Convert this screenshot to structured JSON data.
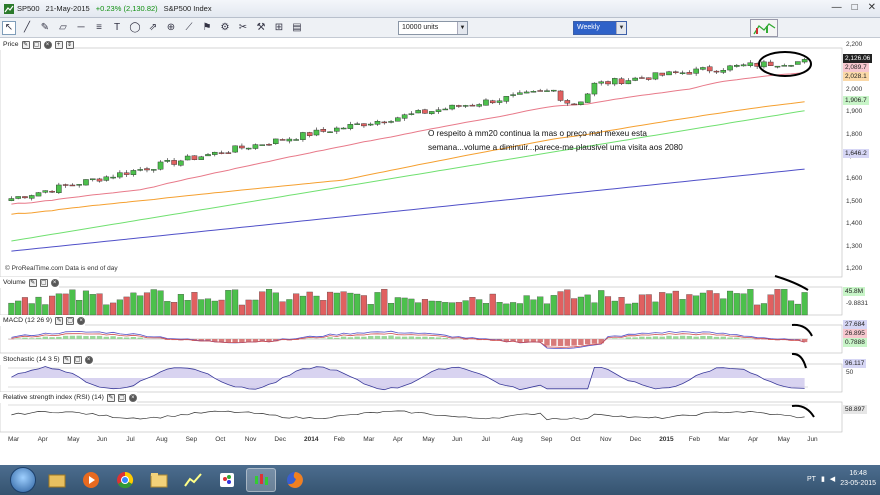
{
  "titlebar": {
    "symbol": "SP500",
    "date": "21-May-2015",
    "change": "+0.23% (2,130.82)",
    "name": "S&P500 Index",
    "controls": [
      "—",
      "□",
      "✕"
    ]
  },
  "toolbar": {
    "units": "10000 units",
    "period": "Weekly"
  },
  "panels": {
    "price": "Price",
    "volume": "Volume",
    "macd": "MACD (12 26 9)",
    "stochastic": "Stochastic (14 3 5)",
    "rsi": "Relative strength index (RSI) (14)"
  },
  "copyright": "© ProRealTime.com  Data is end of day",
  "annotation": {
    "line1": "O respeito à mm20 continua la mas o preço mal mexeu esta",
    "line2": "semana...volume a diminuir...parece-me plausivel uma visita aos 2080"
  },
  "price_axis": [
    "2,200",
    "2,100",
    "2,000",
    "1,900",
    "1,800",
    "1,700",
    "1,600",
    "1,500",
    "1,400",
    "1,300",
    "1,200"
  ],
  "price_tags": {
    "last": "2,126.06",
    "ma_a": "2,089.7",
    "ma_b": "2,028.1",
    "ma_c": "1,906.7",
    "ma_d": "1,646.2"
  },
  "volume_tags": {
    "v1": "45.8M",
    "v2": "-9.8831"
  },
  "macd_tags": {
    "m1": "27.684",
    "m2": "26.895",
    "m3": "0.7888"
  },
  "stoch_tags": {
    "s1": "96.117",
    "s2": "50"
  },
  "rsi_tags": {
    "r1": "58.897"
  },
  "x_axis": [
    "Mar",
    "Apr",
    "May",
    "Jun",
    "Jul",
    "Aug",
    "Sep",
    "Oct",
    "Nov",
    "Dec",
    "2014",
    "Feb",
    "Mar",
    "Apr",
    "May",
    "Jun",
    "Jul",
    "Aug",
    "Sep",
    "Oct",
    "Nov",
    "Dec",
    "2015",
    "Feb",
    "Mar",
    "Apr",
    "May",
    "Jun"
  ],
  "taskbar": {
    "lang": "PT",
    "time": "16:48",
    "date": "23-05-2015"
  },
  "colors": {
    "up": "#4cc04c",
    "down": "#e06060",
    "ma_red": "#e87a8a",
    "ma_orange": "#f5a030",
    "ma_green": "#70e070",
    "ma_blue": "#5050c8"
  },
  "chart_data": {
    "type": "candlestick",
    "instrument": "S&P500 Index",
    "period": "Weekly",
    "price_axis_range": [
      1200,
      2200
    ],
    "annotated_points": {
      "start_close": 1515,
      "end_close": 2126.06,
      "last_weekly_close": 2126.06
    }
  }
}
